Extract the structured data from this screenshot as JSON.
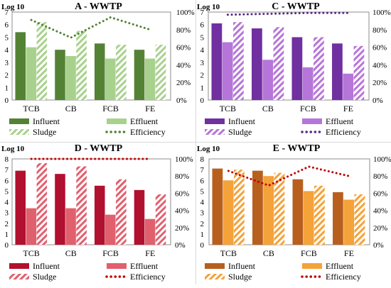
{
  "chart_data": [
    {
      "type": "bar",
      "title": "A - WWTP",
      "ylabel_left": "Log 10",
      "categories": [
        "TCB",
        "CB",
        "FCB",
        "FE"
      ],
      "left_axis": {
        "min": 0,
        "max": 7,
        "ticks": [
          0,
          1,
          2,
          3,
          4,
          5,
          6,
          7
        ]
      },
      "right_axis": {
        "min": 0,
        "max": 100,
        "ticks": [
          "0%",
          "20%",
          "40%",
          "60%",
          "80%",
          "100%"
        ]
      },
      "colors": {
        "influent": "#548235",
        "effluent": "#a9d18e",
        "sludge": "#a9d18e",
        "efficiency": "#548235"
      },
      "series": [
        {
          "name": "Influent",
          "kind": "bar",
          "values": [
            5.4,
            4.0,
            4.5,
            4.0
          ]
        },
        {
          "name": "Effluent",
          "kind": "bar",
          "values": [
            4.2,
            3.5,
            3.3,
            3.3
          ]
        },
        {
          "name": "Sludge",
          "kind": "hatched-bar",
          "values": [
            6.2,
            5.5,
            4.4,
            4.4
          ]
        },
        {
          "name": "Efficiency",
          "kind": "dotted-line",
          "values": [
            91,
            71,
            94,
            80
          ]
        }
      ],
      "legend": "bottom"
    },
    {
      "type": "bar",
      "title": "C - WWTP",
      "ylabel_left": "Log 10",
      "categories": [
        "TCB",
        "CB",
        "FCB",
        "FE"
      ],
      "left_axis": {
        "min": 0,
        "max": 7,
        "ticks": [
          0,
          1,
          2,
          3,
          4,
          5,
          6,
          7
        ]
      },
      "right_axis": {
        "min": 0,
        "max": 100,
        "ticks": [
          "0%",
          "20%",
          "40%",
          "60%",
          "80%",
          "100%"
        ]
      },
      "colors": {
        "influent": "#7030a0",
        "effluent": "#b675d8",
        "sludge": "#b675d8",
        "efficiency": "#5b2a86"
      },
      "series": [
        {
          "name": "Influent",
          "kind": "bar",
          "values": [
            6.1,
            5.7,
            5.0,
            4.5
          ]
        },
        {
          "name": "Effluent",
          "kind": "bar",
          "values": [
            4.6,
            3.2,
            2.6,
            2.1
          ]
        },
        {
          "name": "Sludge",
          "kind": "hatched-bar",
          "values": [
            6.2,
            5.8,
            5.0,
            4.3
          ]
        },
        {
          "name": "Efficiency",
          "kind": "dotted-line",
          "values": [
            97,
            98,
            99,
            99
          ]
        }
      ],
      "legend": "bottom"
    },
    {
      "type": "bar",
      "title": "D - WWTP",
      "ylabel_left": "Log 10",
      "categories": [
        "TCB",
        "CB",
        "FCB",
        "FE"
      ],
      "left_axis": {
        "min": 0,
        "max": 8,
        "ticks": [
          0,
          1,
          2,
          3,
          4,
          5,
          6,
          7,
          8
        ]
      },
      "right_axis": {
        "min": 0,
        "max": 100,
        "ticks": [
          "0%",
          "20%",
          "40%",
          "60%",
          "80%",
          "100%"
        ]
      },
      "colors": {
        "influent": "#b2102f",
        "effluent": "#e0606e",
        "sludge": "#e0606e",
        "efficiency": "#c00000"
      },
      "series": [
        {
          "name": "Influent",
          "kind": "bar",
          "values": [
            6.9,
            6.6,
            5.5,
            5.1
          ]
        },
        {
          "name": "Effluent",
          "kind": "bar",
          "values": [
            3.4,
            3.4,
            2.8,
            2.4
          ]
        },
        {
          "name": "Sludge",
          "kind": "hatched-bar",
          "values": [
            7.6,
            7.3,
            6.1,
            4.7
          ]
        },
        {
          "name": "Efficiency",
          "kind": "dotted-line",
          "values": [
            100,
            100,
            100,
            100
          ]
        }
      ],
      "legend": "bottom"
    },
    {
      "type": "bar",
      "title": "E - WWTP",
      "ylabel_left": "Log 10",
      "categories": [
        "TCB",
        "CB",
        "FCB",
        "FE"
      ],
      "left_axis": {
        "min": 0,
        "max": 8,
        "ticks": [
          0,
          1,
          2,
          3,
          4,
          5,
          6,
          7,
          8
        ]
      },
      "right_axis": {
        "min": 0,
        "max": 100,
        "ticks": [
          "0%",
          "20%",
          "40%",
          "60%",
          "80%",
          "100%"
        ]
      },
      "colors": {
        "influent": "#b85f1e",
        "effluent": "#f4a23a",
        "sludge": "#f4a23a",
        "efficiency": "#c00000"
      },
      "series": [
        {
          "name": "Influent",
          "kind": "bar",
          "values": [
            7.1,
            6.9,
            6.1,
            4.9
          ]
        },
        {
          "name": "Effluent",
          "kind": "bar",
          "values": [
            6.0,
            6.4,
            5.0,
            4.2
          ]
        },
        {
          "name": "Sludge",
          "kind": "hatched-bar",
          "values": [
            7.0,
            6.7,
            5.5,
            4.7
          ]
        },
        {
          "name": "Efficiency",
          "kind": "dotted-line",
          "values": [
            86,
            69,
            91,
            80
          ]
        }
      ],
      "legend": "bottom"
    }
  ]
}
